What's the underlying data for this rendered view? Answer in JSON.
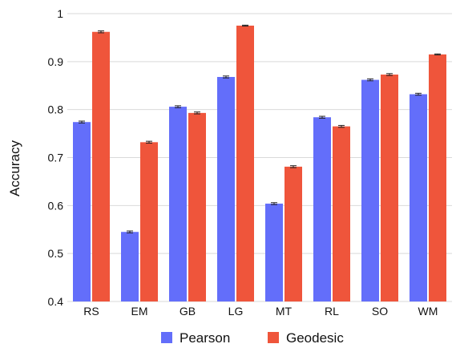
{
  "chart_data": {
    "type": "bar",
    "title": "",
    "xlabel": "",
    "ylabel": "Accuracy",
    "ylim": [
      0.4,
      1.0
    ],
    "yticks": [
      "0.4",
      "0.5",
      "0.6",
      "0.7",
      "0.8",
      "0.9",
      "1"
    ],
    "grid": "horizontal",
    "legend_position": "bottom-center",
    "categories": [
      "RS",
      "EM",
      "GB",
      "LG",
      "MT",
      "RL",
      "SO",
      "WM"
    ],
    "series": [
      {
        "name": "Pearson",
        "color": "#636efa",
        "values": [
          0.774,
          0.545,
          0.806,
          0.868,
          0.604,
          0.784,
          0.862,
          0.832
        ],
        "errors": [
          0.002,
          0.002,
          0.002,
          0.002,
          0.002,
          0.002,
          0.002,
          0.002
        ]
      },
      {
        "name": "Geodesic",
        "color": "#ef553b",
        "values": [
          0.962,
          0.732,
          0.793,
          0.975,
          0.681,
          0.765,
          0.873,
          0.915
        ],
        "errors": [
          0.002,
          0.002,
          0.002,
          0.001,
          0.002,
          0.002,
          0.002,
          0.001
        ]
      }
    ]
  }
}
